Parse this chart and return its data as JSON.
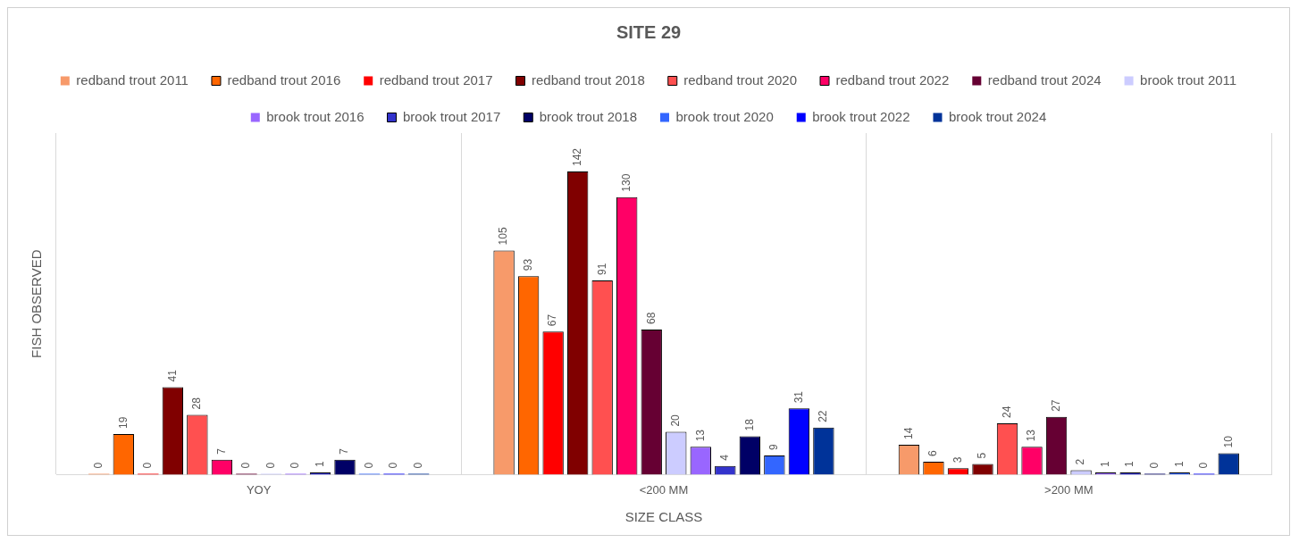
{
  "chart_data": {
    "type": "bar",
    "title": "SITE 29",
    "xlabel": "SIZE CLASS",
    "ylabel": "FISH OBSERVED",
    "categories": [
      "YOY",
      "<200 MM",
      ">200 MM"
    ],
    "data_labels": true,
    "grid": "x",
    "legend": "top",
    "series": [
      {
        "name": "redband trout 2011",
        "color": "#f79a6a",
        "values": [
          0,
          105,
          14
        ]
      },
      {
        "name": "redband trout 2016",
        "color": "#ff6600",
        "values": [
          19,
          93,
          6
        ]
      },
      {
        "name": "redband trout 2017",
        "color": "#ff0000",
        "values": [
          0,
          67,
          3
        ]
      },
      {
        "name": "redband trout 2018",
        "color": "#800000",
        "values": [
          41,
          142,
          5
        ]
      },
      {
        "name": "redband trout 2020",
        "color": "#ff5050",
        "values": [
          28,
          91,
          24
        ]
      },
      {
        "name": "redband trout 2022",
        "color": "#ff0066",
        "values": [
          7,
          130,
          13
        ]
      },
      {
        "name": "redband trout 2024",
        "color": "#660033",
        "values": [
          0,
          68,
          27
        ]
      },
      {
        "name": "brook trout 2011",
        "color": "#ccccff",
        "values": [
          0,
          20,
          2
        ]
      },
      {
        "name": "brook trout 2016",
        "color": "#9966ff",
        "values": [
          0,
          13,
          1
        ]
      },
      {
        "name": "brook trout 2017",
        "color": "#3333cc",
        "values": [
          1,
          4,
          1
        ]
      },
      {
        "name": "brook trout 2018",
        "color": "#000066",
        "values": [
          7,
          18,
          0
        ]
      },
      {
        "name": "brook trout 2020",
        "color": "#3366ff",
        "values": [
          0,
          9,
          1
        ]
      },
      {
        "name": "brook trout 2022",
        "color": "#0000ff",
        "values": [
          0,
          31,
          0
        ]
      },
      {
        "name": "brook trout 2024",
        "color": "#003399",
        "values": [
          0,
          22,
          10
        ]
      }
    ]
  }
}
